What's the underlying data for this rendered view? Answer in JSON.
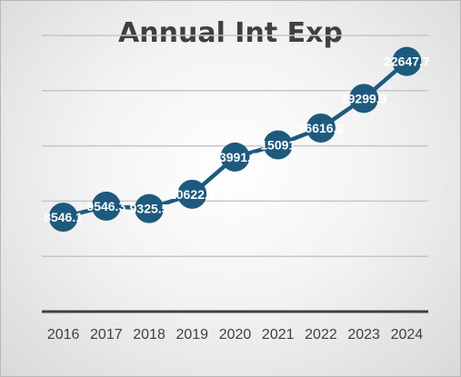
{
  "chart_data": {
    "type": "line",
    "title": "Annual Int Exp",
    "categories": [
      "2016",
      "2017",
      "2018",
      "2019",
      "2020",
      "2021",
      "2022",
      "2023",
      "2024"
    ],
    "series": [
      {
        "values": [
          8546.1,
          9546.3,
          9325.5,
          10622.2,
          13991.8,
          15091,
          16616.2,
          19299.9,
          22647.7
        ]
      }
    ],
    "data_labels": [
      "8546.1",
      "9546.3",
      "9325.5",
      "10622.2",
      "13991.8",
      "15091",
      "16616.2",
      "19299.9",
      "22647.7"
    ],
    "xlabel": "",
    "ylabel": "",
    "ylim": [
      0,
      25000
    ],
    "grid": true,
    "legend": "none",
    "colors": {
      "line": "#1d5a7e",
      "marker": "#1d5a7e",
      "grid": "#c6c6c6",
      "axis": "#404040",
      "text": "#404040"
    }
  }
}
